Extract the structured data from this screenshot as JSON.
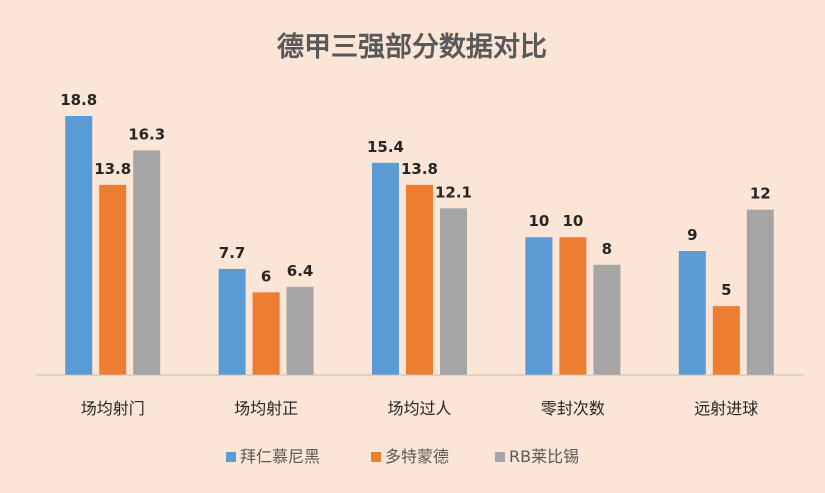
{
  "chart_data": {
    "type": "bar",
    "title": "德甲三强部分数据对比",
    "categories": [
      "场均射门",
      "场均射正",
      "场均过人",
      "零封次数",
      "远射进球"
    ],
    "series": [
      {
        "name": "拜仁慕尼黑",
        "color": "#5b9bd5",
        "values": [
          18.8,
          7.7,
          15.4,
          10,
          9
        ]
      },
      {
        "name": "多特蒙德",
        "color": "#ed7d31",
        "values": [
          13.8,
          6,
          13.8,
          10,
          5
        ]
      },
      {
        "name": "RB莱比锡",
        "color": "#a5a5a5",
        "values": [
          16.3,
          6.4,
          12.1,
          8,
          12
        ]
      }
    ],
    "data_labels": [
      [
        "18.8",
        "7.7",
        "15.4",
        "10",
        "9"
      ],
      [
        "13.8",
        "6",
        "13.8",
        "10",
        "5"
      ],
      [
        "16.3",
        "6.4",
        "12.1",
        "8",
        "12"
      ]
    ],
    "xlabel": "",
    "ylabel": "",
    "ylim": [
      0,
      18.8
    ],
    "grid": false,
    "legend_position": "bottom"
  }
}
